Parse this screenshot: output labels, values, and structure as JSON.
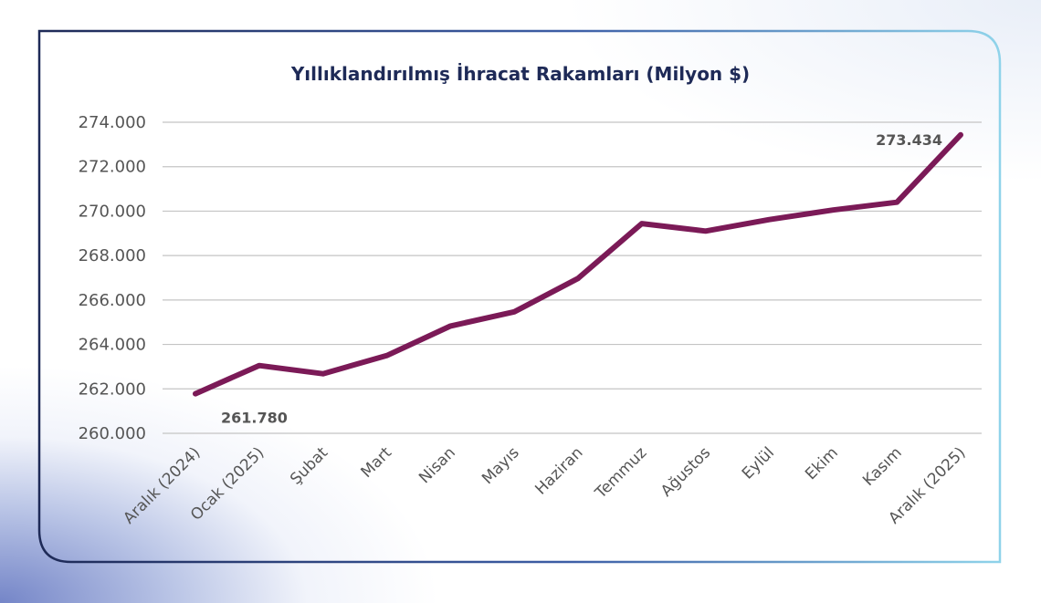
{
  "chart_data": {
    "type": "line",
    "title": "Yıllıklandırılmış İhracat Rakamları (Milyon $)",
    "categories": [
      "Aralık (2024)",
      "Ocak (2025)",
      "Şubat",
      "Mart",
      "Nisan",
      "Mayıs",
      "Haziran",
      "Temmuz",
      "Ağustos",
      "Eylül",
      "Ekim",
      "Kasım",
      "Aralık (2025)"
    ],
    "series": [
      {
        "values": [
          261780,
          263050,
          262680,
          263500,
          264830,
          265470,
          266970,
          269440,
          269100,
          269620,
          270050,
          270400,
          273434
        ]
      }
    ],
    "ylim": [
      260000,
      274000
    ],
    "yticks": [
      260000,
      262000,
      264000,
      266000,
      268000,
      270000,
      272000,
      274000
    ],
    "ytick_labels": [
      "260.000",
      "262.000",
      "264.000",
      "266.000",
      "268.000",
      "270.000",
      "272.000",
      "274.000"
    ],
    "data_labels": [
      {
        "index": 0,
        "text": "261.780"
      },
      {
        "index": 12,
        "text": "273.434"
      }
    ],
    "grid": true,
    "legend": "none",
    "colors": {
      "line": "#7b1a57",
      "title": "#1e2a57",
      "frame_start": "#1e2a57",
      "frame_end": "#8fd3ea"
    }
  }
}
